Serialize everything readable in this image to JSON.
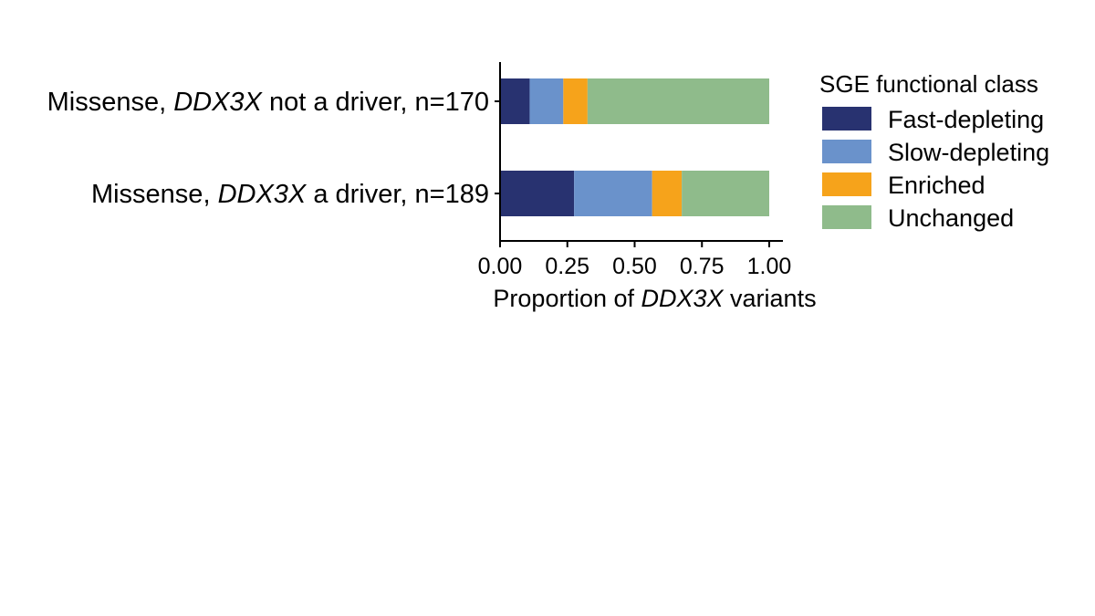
{
  "chart_data": {
    "type": "bar",
    "orientation": "horizontal",
    "stacked": true,
    "categories": [
      {
        "parts": [
          "Missense, ",
          "DDX3X",
          " not a driver, n=170"
        ],
        "italic_index": 1
      },
      {
        "parts": [
          "Missense, ",
          "DDX3X",
          " a driver, n=189"
        ],
        "italic_index": 1
      }
    ],
    "series": [
      {
        "name": "Fast-depleting",
        "color": "#283270",
        "values": [
          0.11,
          0.275
        ]
      },
      {
        "name": "Slow-depleting",
        "color": "#6a92cb",
        "values": [
          0.125,
          0.29
        ]
      },
      {
        "name": "Enriched",
        "color": "#f6a31b",
        "values": [
          0.09,
          0.11
        ]
      },
      {
        "name": "Unchanged",
        "color": "#8fbb8b",
        "values": [
          0.675,
          0.325
        ]
      }
    ],
    "xlim": [
      0,
      1
    ],
    "xticks": [
      "0.00",
      "0.25",
      "0.50",
      "0.75",
      "1.00"
    ],
    "xlabel": {
      "parts": [
        "Proportion of ",
        "DDX3X",
        " variants"
      ],
      "italic_index": 1
    },
    "legend": {
      "title": "SGE functional class",
      "position": "right"
    },
    "grid": false
  }
}
